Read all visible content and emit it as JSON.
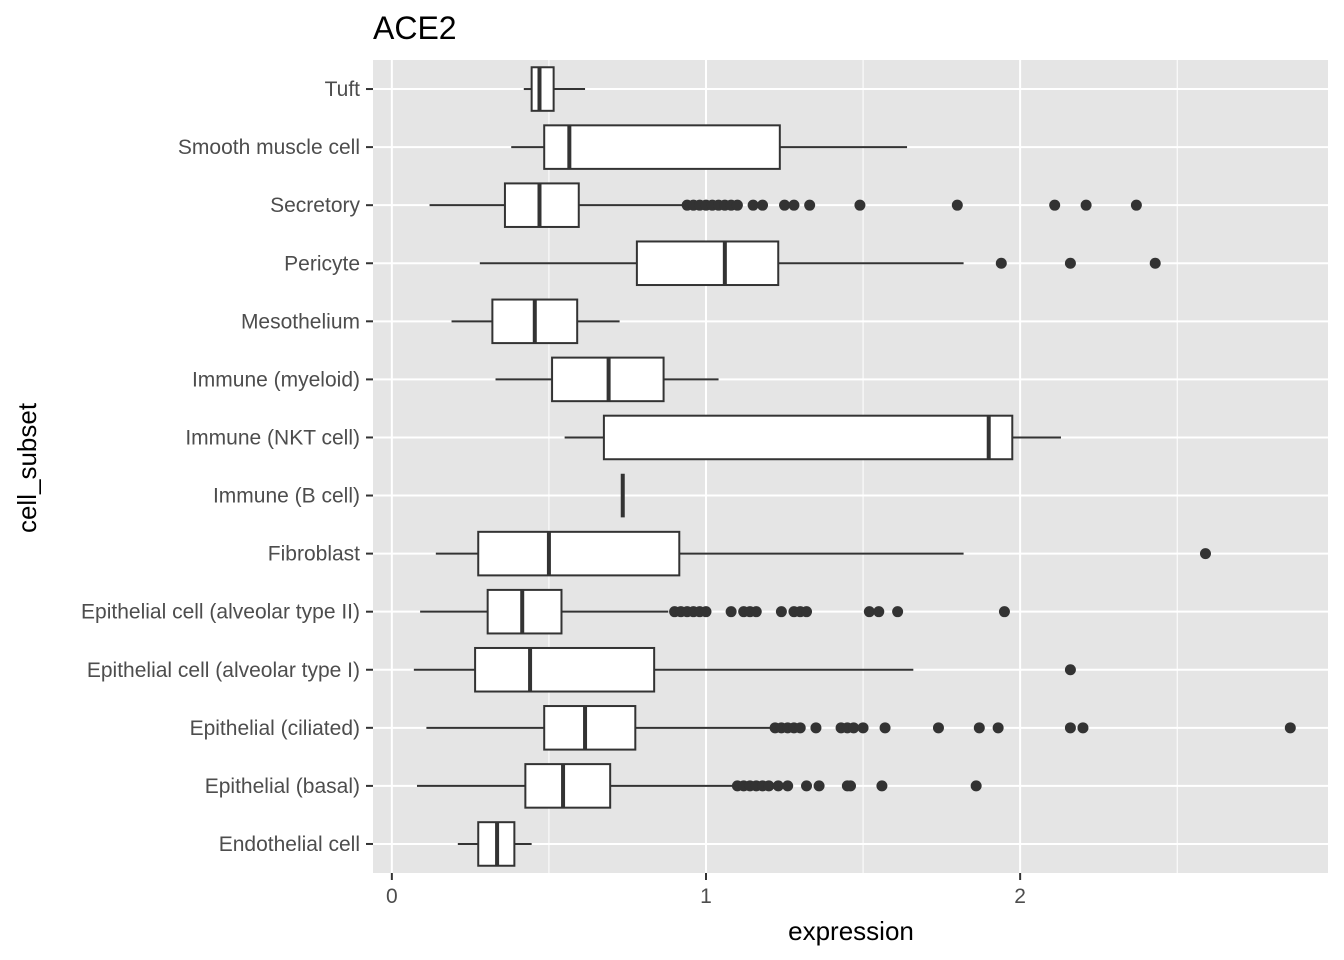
{
  "chart_data": {
    "type": "boxplot",
    "orientation": "horizontal",
    "title": "ACE2",
    "xlabel": "expression",
    "ylabel": "cell_subset",
    "xlim": [
      -0.06,
      2.98
    ],
    "x_ticks": [
      0,
      1,
      2
    ],
    "x_tick_labels": [
      "0",
      "1",
      "2"
    ],
    "grid": true,
    "colors": {
      "panel": "#e5e5e5",
      "grid": "#ffffff",
      "box_fill": "#ffffff",
      "box_line": "#333333",
      "outlier": "#333333",
      "tick_label": "#4d4d4d",
      "text": "#000000"
    },
    "categories": [
      "Tuft",
      "Smooth muscle cell",
      "Secretory",
      "Pericyte",
      "Mesothelium",
      "Immune (myeloid)",
      "Immune (NKT cell)",
      "Immune (B cell)",
      "Fibroblast",
      "Epithelial cell (alveolar type II)",
      "Epithelial cell (alveolar type I)",
      "Epithelial (ciliated)",
      "Epithelial (basal)",
      "Endothelial cell"
    ],
    "boxes": [
      {
        "min": 0.42,
        "q1": 0.445,
        "median": 0.47,
        "q3": 0.515,
        "max": 0.615,
        "outliers": []
      },
      {
        "min": 0.38,
        "q1": 0.485,
        "median": 0.565,
        "q3": 1.235,
        "max": 1.64,
        "outliers": []
      },
      {
        "min": 0.12,
        "q1": 0.36,
        "median": 0.47,
        "q3": 0.595,
        "max": 0.93,
        "outliers": [
          0.94,
          0.96,
          0.98,
          1.0,
          1.02,
          1.04,
          1.06,
          1.08,
          1.1,
          1.15,
          1.18,
          1.25,
          1.28,
          1.33,
          1.49,
          1.8,
          2.11,
          2.21,
          2.37
        ]
      },
      {
        "min": 0.28,
        "q1": 0.78,
        "median": 1.06,
        "q3": 1.23,
        "max": 1.82,
        "outliers": [
          1.94,
          2.16,
          2.43
        ]
      },
      {
        "min": 0.19,
        "q1": 0.32,
        "median": 0.455,
        "q3": 0.59,
        "max": 0.725,
        "outliers": []
      },
      {
        "min": 0.33,
        "q1": 0.51,
        "median": 0.69,
        "q3": 0.865,
        "max": 1.04,
        "outliers": []
      },
      {
        "min": 0.55,
        "q1": 0.675,
        "median": 1.9,
        "q3": 1.975,
        "max": 2.13,
        "outliers": []
      },
      {
        "min": 0.735,
        "q1": 0.735,
        "median": 0.735,
        "q3": 0.735,
        "max": 0.735,
        "outliers": []
      },
      {
        "min": 0.14,
        "q1": 0.275,
        "median": 0.5,
        "q3": 0.915,
        "max": 1.82,
        "outliers": [
          2.59
        ]
      },
      {
        "min": 0.09,
        "q1": 0.305,
        "median": 0.415,
        "q3": 0.54,
        "max": 0.88,
        "outliers": [
          0.9,
          0.92,
          0.94,
          0.96,
          0.98,
          1.0,
          1.08,
          1.12,
          1.14,
          1.16,
          1.24,
          1.28,
          1.3,
          1.32,
          1.52,
          1.55,
          1.61,
          1.95
        ]
      },
      {
        "min": 0.07,
        "q1": 0.265,
        "median": 0.44,
        "q3": 0.835,
        "max": 1.66,
        "outliers": [
          2.16
        ]
      },
      {
        "min": 0.11,
        "q1": 0.485,
        "median": 0.615,
        "q3": 0.775,
        "max": 1.21,
        "outliers": [
          1.22,
          1.24,
          1.26,
          1.28,
          1.3,
          1.35,
          1.43,
          1.45,
          1.47,
          1.5,
          1.57,
          1.74,
          1.87,
          1.93,
          2.16,
          2.2,
          2.86
        ]
      },
      {
        "min": 0.08,
        "q1": 0.425,
        "median": 0.545,
        "q3": 0.695,
        "max": 1.09,
        "outliers": [
          1.1,
          1.12,
          1.14,
          1.16,
          1.18,
          1.2,
          1.23,
          1.26,
          1.32,
          1.36,
          1.45,
          1.46,
          1.56,
          1.86
        ]
      },
      {
        "min": 0.21,
        "q1": 0.275,
        "median": 0.335,
        "q3": 0.39,
        "max": 0.445,
        "outliers": []
      }
    ]
  }
}
